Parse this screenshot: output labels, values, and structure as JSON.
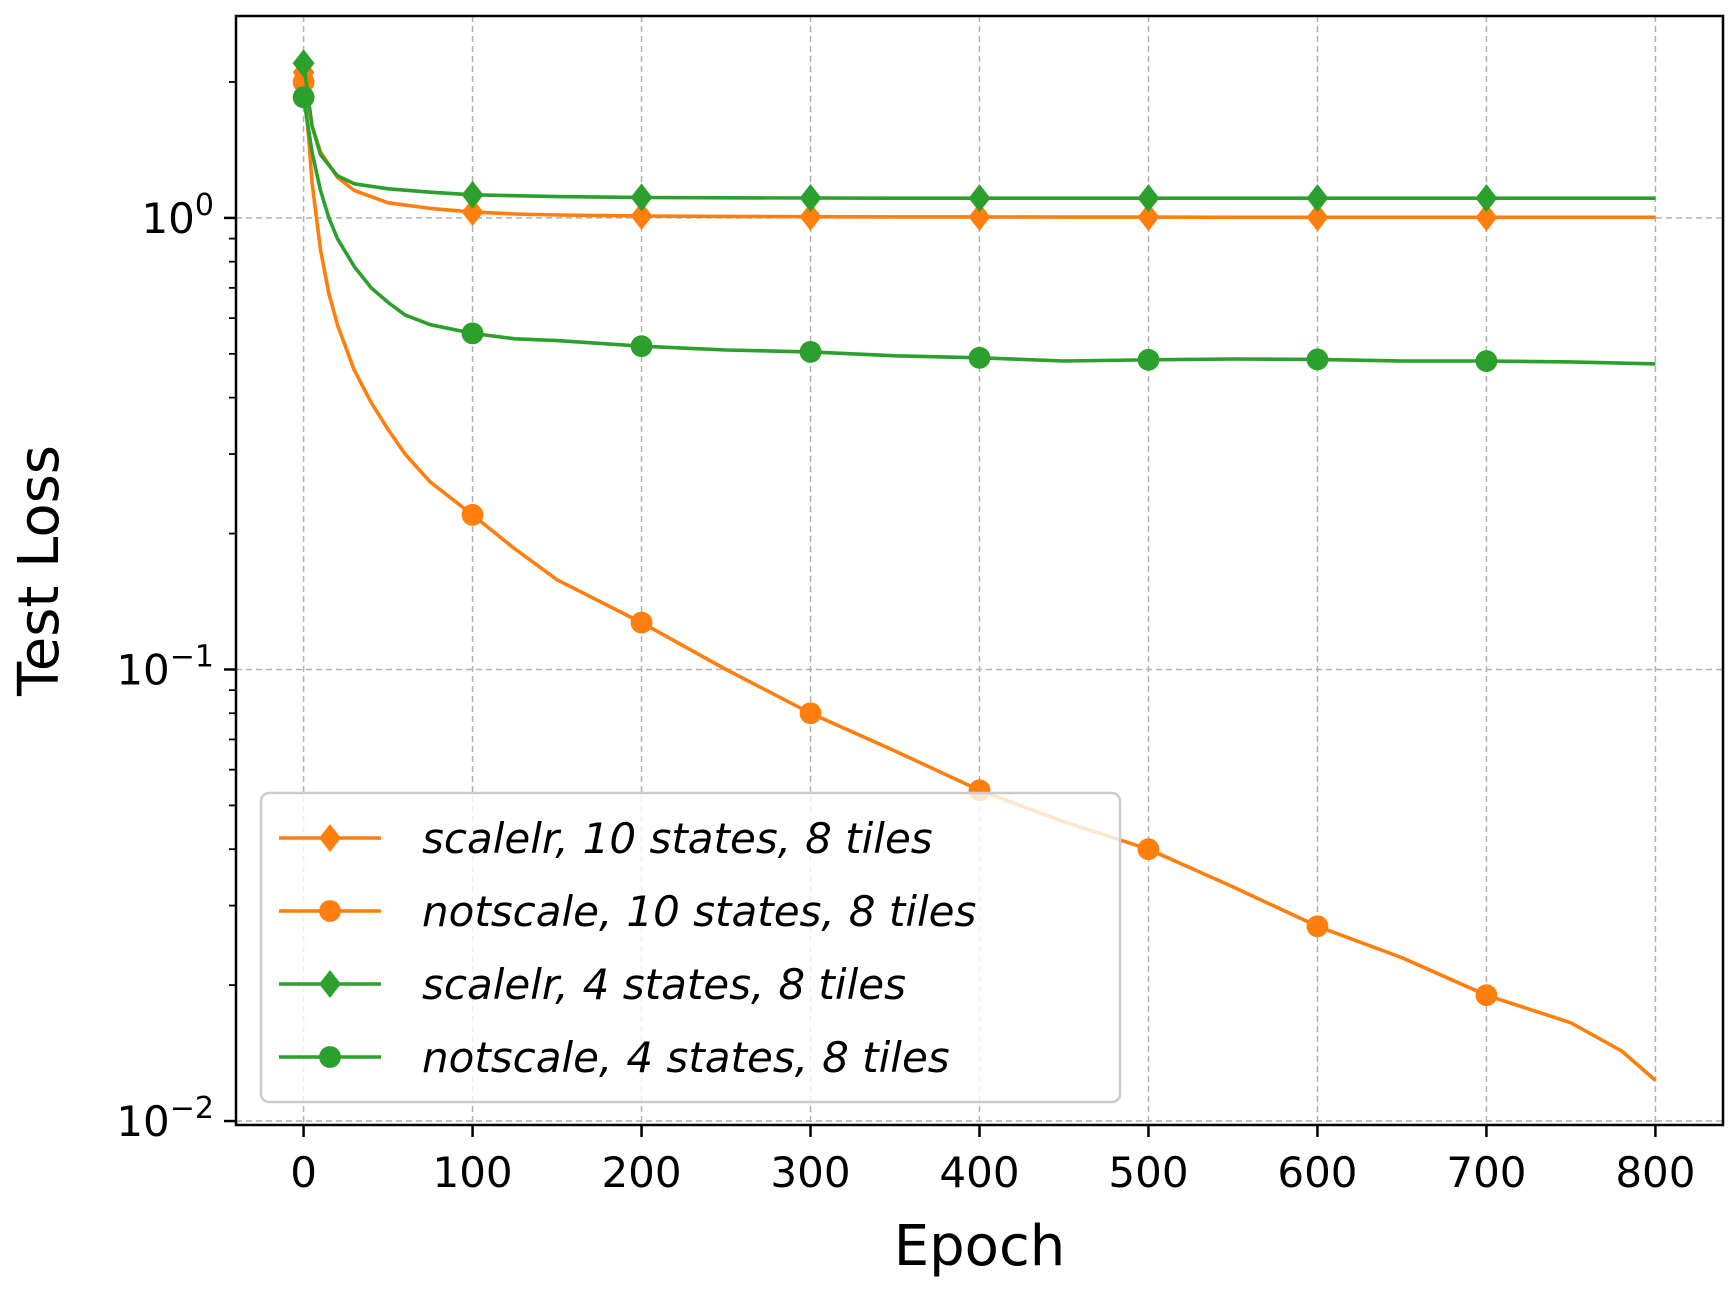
{
  "chart_data": {
    "type": "line",
    "xlabel": "Epoch",
    "ylabel": "Test Loss",
    "xscale": "linear",
    "yscale": "log",
    "xlim": [
      -40,
      840
    ],
    "ylim": [
      0.0098,
      2.8
    ],
    "grid": true,
    "legend_position": "lower-left",
    "xticks": [
      0,
      100,
      200,
      300,
      400,
      500,
      600,
      700,
      800
    ],
    "xtick_labels": [
      "0",
      "100",
      "200",
      "300",
      "400",
      "500",
      "600",
      "700",
      "800"
    ],
    "yticks": [
      1,
      0.1,
      0.01
    ],
    "ytick_labels": [
      {
        "base": "10",
        "exp": "0"
      },
      {
        "base": "10",
        "exp": "−1"
      },
      {
        "base": "10",
        "exp": "−2"
      }
    ],
    "series": [
      {
        "name_parts": [
          "scalelr,",
          "10 states,",
          "8 tiles"
        ],
        "color": "#ff7f0e",
        "marker": "diamond",
        "x": [
          0,
          5,
          10,
          20,
          30,
          50,
          75,
          100,
          125,
          150,
          200,
          250,
          300,
          350,
          400,
          450,
          500,
          550,
          600,
          650,
          700,
          750,
          800
        ],
        "y": [
          2.1,
          1.6,
          1.4,
          1.23,
          1.15,
          1.08,
          1.05,
          1.03,
          1.02,
          1.015,
          1.01,
          1.008,
          1.006,
          1.005,
          1.005,
          1.004,
          1.004,
          1.003,
          1.003,
          1.003,
          1.003,
          1.003,
          1.003
        ],
        "marker_x": [
          0,
          100,
          200,
          300,
          400,
          500,
          600,
          700
        ]
      },
      {
        "name_parts": [
          "notscale,",
          "10 states,",
          "8 tiles"
        ],
        "color": "#ff7f0e",
        "marker": "circle",
        "x": [
          0,
          3,
          5,
          10,
          15,
          20,
          30,
          40,
          50,
          60,
          75,
          100,
          125,
          150,
          200,
          250,
          300,
          350,
          400,
          450,
          500,
          550,
          600,
          650,
          700,
          750,
          780,
          800
        ],
        "y": [
          2.0,
          1.5,
          1.2,
          0.85,
          0.68,
          0.58,
          0.46,
          0.39,
          0.34,
          0.3,
          0.26,
          0.22,
          0.185,
          0.158,
          0.127,
          0.1,
          0.08,
          0.066,
          0.054,
          0.046,
          0.04,
          0.033,
          0.027,
          0.023,
          0.019,
          0.0165,
          0.0143,
          0.0123
        ],
        "marker_x": [
          0,
          100,
          200,
          300,
          400,
          500,
          600,
          700
        ]
      },
      {
        "name_parts": [
          "scalelr,",
          "4 states,",
          "8 tiles"
        ],
        "color": "#2ca02c",
        "marker": "diamond",
        "x": [
          0,
          5,
          10,
          20,
          30,
          50,
          75,
          100,
          150,
          200,
          250,
          300,
          350,
          400,
          450,
          500,
          550,
          600,
          650,
          700,
          750,
          800
        ],
        "y": [
          2.2,
          1.6,
          1.38,
          1.24,
          1.19,
          1.16,
          1.14,
          1.125,
          1.115,
          1.11,
          1.108,
          1.107,
          1.106,
          1.106,
          1.106,
          1.106,
          1.106,
          1.106,
          1.106,
          1.106,
          1.106,
          1.106
        ],
        "marker_x": [
          0,
          100,
          200,
          300,
          400,
          500,
          600,
          700
        ]
      },
      {
        "name_parts": [
          "notscale,",
          "4 states,",
          "8 tiles"
        ],
        "color": "#2ca02c",
        "marker": "circle",
        "x": [
          0,
          5,
          10,
          15,
          20,
          30,
          40,
          50,
          60,
          75,
          100,
          125,
          150,
          200,
          250,
          300,
          350,
          400,
          450,
          500,
          550,
          600,
          650,
          700,
          750,
          800
        ],
        "y": [
          1.85,
          1.4,
          1.15,
          1.0,
          0.9,
          0.78,
          0.7,
          0.65,
          0.61,
          0.58,
          0.555,
          0.54,
          0.535,
          0.52,
          0.51,
          0.505,
          0.495,
          0.49,
          0.482,
          0.485,
          0.487,
          0.486,
          0.482,
          0.482,
          0.48,
          0.475
        ],
        "marker_x": [
          0,
          100,
          200,
          300,
          400,
          500,
          600,
          700
        ]
      }
    ]
  }
}
